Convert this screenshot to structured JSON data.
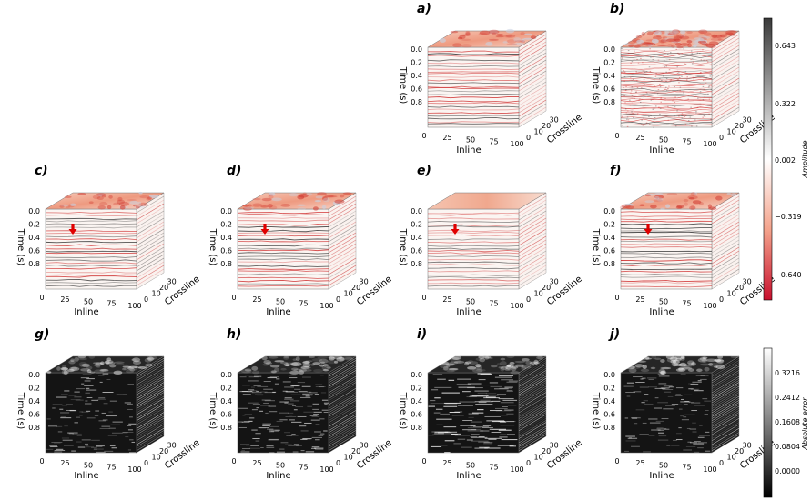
{
  "panels": [
    {
      "letter": "a)",
      "style": "seismic",
      "variant": "clean",
      "arrow": false
    },
    {
      "letter": "b)",
      "style": "seismic",
      "variant": "noisy",
      "arrow": false
    },
    {
      "letter": "c)",
      "style": "seismic",
      "variant": "rec1",
      "arrow": true
    },
    {
      "letter": "d)",
      "style": "seismic",
      "variant": "rec2",
      "arrow": true
    },
    {
      "letter": "e)",
      "style": "seismic",
      "variant": "smooth",
      "arrow": true
    },
    {
      "letter": "f)",
      "style": "seismic",
      "variant": "rec3",
      "arrow": true
    },
    {
      "letter": "g)",
      "style": "error",
      "variant": "e1",
      "arrow": false
    },
    {
      "letter": "h)",
      "style": "error",
      "variant": "e2",
      "arrow": false
    },
    {
      "letter": "i)",
      "style": "error",
      "variant": "e3",
      "arrow": false
    },
    {
      "letter": "j)",
      "style": "error",
      "variant": "e4",
      "arrow": false
    }
  ],
  "axes": {
    "time_label": "Time (s)",
    "time_ticks": [
      "0.0",
      "0.2",
      "0.4",
      "0.6",
      "0.8"
    ],
    "inline_label": "Inline",
    "inline_ticks": [
      "0",
      "25",
      "50",
      "75",
      "100"
    ],
    "crossline_label": "Crossline",
    "crossline_ticks": [
      "0",
      "10",
      "20",
      "30"
    ]
  },
  "colorbar_amplitude": {
    "label": "Amplitude",
    "ticks": [
      "0.643",
      "0.322",
      "0.002",
      "−0.319",
      "−0.640"
    ],
    "colors": {
      "high": "#3a3a3a",
      "mid": "#ffffff",
      "low": "#c8102e"
    }
  },
  "colorbar_error": {
    "label": "Absolute error",
    "ticks": [
      "0.3216",
      "0.2412",
      "0.1608",
      "0.0804",
      "0.0000"
    ],
    "colors": {
      "high": "#ffffff",
      "low": "#000000"
    }
  },
  "arrow_color": "#e00000"
}
